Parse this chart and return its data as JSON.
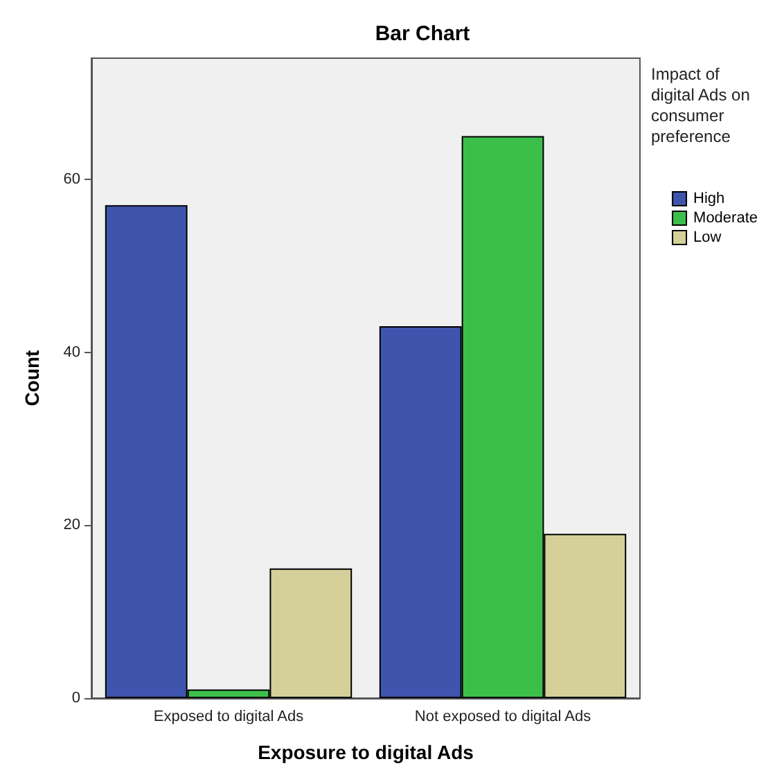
{
  "chart_data": {
    "type": "bar",
    "title": "Bar Chart",
    "xlabel": "Exposure to digital Ads",
    "ylabel": "Count",
    "legend_title": "Impact of digital Ads on consumer preference",
    "categories": [
      "Exposed to digital Ads",
      "Not exposed to digital Ads"
    ],
    "series": [
      {
        "name": "High",
        "color": "#3f55ad",
        "values": [
          57,
          43
        ]
      },
      {
        "name": "Moderate",
        "color": "#3cbf4a",
        "values": [
          1,
          65
        ]
      },
      {
        "name": "Low",
        "color": "#d5d09a",
        "values": [
          15,
          19
        ]
      }
    ],
    "ylim": [
      0,
      74
    ],
    "yticks": [
      0,
      20,
      40,
      60
    ],
    "grid": false,
    "legend": "right"
  }
}
